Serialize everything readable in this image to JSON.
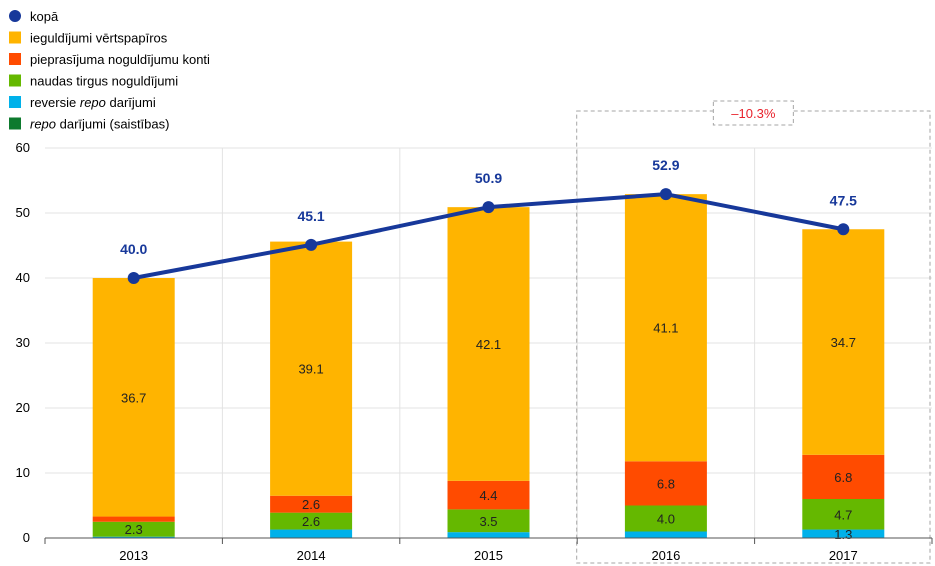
{
  "chart_data": {
    "type": "bar",
    "stacked": true,
    "categories": [
      "2013",
      "2014",
      "2015",
      "2016",
      "2017"
    ],
    "ylim": [
      0,
      60
    ],
    "yticks": [
      0,
      10,
      20,
      30,
      40,
      50,
      60
    ],
    "grid": true,
    "legend_position": "top-left",
    "series": [
      {
        "name": "reversie repo darījumi",
        "color": "#00b1ea",
        "values": [
          0.2,
          1.3,
          0.9,
          1.0,
          1.3
        ],
        "labels": [
          "",
          "",
          "",
          "",
          "1.3"
        ]
      },
      {
        "name": "naudas tirgus noguldījumi",
        "color": "#65b800",
        "values": [
          2.3,
          2.6,
          3.5,
          4.0,
          4.7
        ],
        "labels": [
          "2.3",
          "2.6",
          "3.5",
          "4.0",
          "4.7"
        ]
      },
      {
        "name": "pieprasījuma noguldījumu konti",
        "color": "#ff4b00",
        "values": [
          0.8,
          2.6,
          4.4,
          6.8,
          6.8
        ],
        "labels": [
          "",
          "2.6",
          "4.4",
          "6.8",
          "6.8"
        ]
      },
      {
        "name": "ieguldījumi vērtspapīros",
        "color": "#ffb400",
        "values": [
          36.7,
          39.1,
          42.1,
          41.1,
          34.7
        ],
        "labels": [
          "36.7",
          "39.1",
          "42.1",
          "41.1",
          "34.7"
        ]
      }
    ],
    "line": {
      "name": "kopā",
      "color": "#17389a",
      "values": [
        40.0,
        45.1,
        50.9,
        52.9,
        47.5
      ],
      "labels": [
        "40.0",
        "45.1",
        "50.9",
        "52.9",
        "47.5"
      ]
    },
    "legend": [
      {
        "label": "kopā",
        "marker": "circle",
        "color": "#17389a",
        "italic_prefix": "",
        "text": "kopā"
      },
      {
        "label": "ieguldījumi vērtspapīros",
        "marker": "square",
        "color": "#ffb400",
        "italic_prefix": "",
        "text": "ieguldījumi vērtspapīros"
      },
      {
        "label": "pieprasījuma noguldījumu konti",
        "marker": "square",
        "color": "#ff4b00",
        "italic_prefix": "",
        "text": "pieprasījuma noguldījumu konti"
      },
      {
        "label": "naudas tirgus noguldījumi",
        "marker": "square",
        "color": "#65b800",
        "italic_prefix": "",
        "text": "naudas tirgus noguldījumi"
      },
      {
        "label": "reversie repo darījumi",
        "marker": "square",
        "color": "#00b1ea",
        "italic_prefix": "",
        "text": "reversie ",
        "italic_mid": "repo",
        "text_after": " darījumi"
      },
      {
        "label": "repo darījumi (saistības)",
        "marker": "square",
        "color": "#0d7a2e",
        "italic_prefix": "repo",
        "text": " darījumi (saistības)"
      }
    ],
    "callout": {
      "text": "–10.3%",
      "color": "#e8212b",
      "from_category": "2016",
      "to_category": "2017"
    }
  }
}
